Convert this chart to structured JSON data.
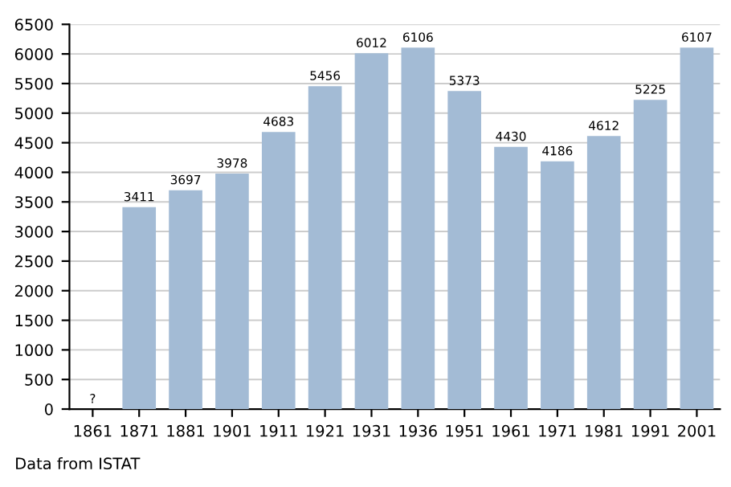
{
  "chart_data": {
    "type": "bar",
    "categories": [
      "1861",
      "1871",
      "1881",
      "1901",
      "1911",
      "1921",
      "1931",
      "1936",
      "1951",
      "1961",
      "1971",
      "1981",
      "1991",
      "2001"
    ],
    "values": [
      null,
      3411,
      3697,
      3978,
      4683,
      5456,
      6012,
      6106,
      5373,
      4430,
      4186,
      4612,
      5225,
      6107
    ],
    "value_labels": [
      "?",
      "3411",
      "3697",
      "3978",
      "4683",
      "5456",
      "6012",
      "6106",
      "5373",
      "4430",
      "4186",
      "4612",
      "5225",
      "6107"
    ],
    "color": "#a3bbd5",
    "ylim": [
      0,
      6500
    ],
    "yticks": [
      0,
      500,
      1000,
      1500,
      2000,
      2500,
      3000,
      3500,
      4000,
      4500,
      5000,
      5500,
      6000,
      6500
    ],
    "grid": "y",
    "annotations": [
      "Data from ISTAT"
    ]
  }
}
